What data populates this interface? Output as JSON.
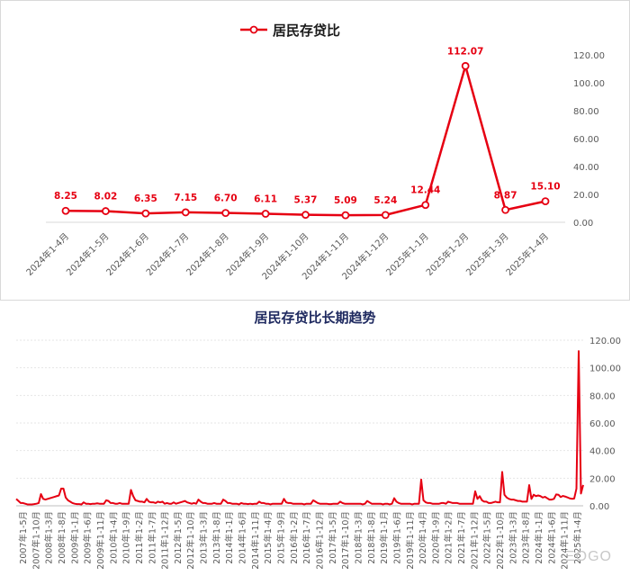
{
  "colors": {
    "series": "#e60012",
    "grid": "#d9d9d9",
    "title": "#1a1a1a",
    "bottom_title": "#1f2a60",
    "axis_text": "#595959"
  },
  "chart_data": [
    {
      "type": "line",
      "title": "",
      "legend": {
        "label": "居民存贷比",
        "position": "top"
      },
      "categories": [
        "2024年1-4月",
        "2024年1-5月",
        "2024年1-6月",
        "2024年1-7月",
        "2024年1-8月",
        "2024年1-9月",
        "2024年1-10月",
        "2024年1-11月",
        "2024年1-12月",
        "2025年1-1月",
        "2025年1-2月",
        "2025年1-3月",
        "2025年1-4月"
      ],
      "values": [
        8.25,
        8.02,
        6.35,
        7.15,
        6.7,
        6.11,
        5.37,
        5.09,
        5.24,
        12.44,
        112.07,
        8.87,
        15.1
      ],
      "data_labels": [
        "8.25",
        "8.02",
        "6.35",
        "7.15",
        "6.70",
        "6.11",
        "5.37",
        "5.09",
        "5.24",
        "12.44",
        "112.07",
        "8.87",
        "15.10"
      ],
      "ylim": [
        0,
        120
      ],
      "yticks": [
        "0.00",
        "20.00",
        "40.00",
        "60.00",
        "80.00",
        "100.00",
        "120.00"
      ],
      "y_axis_side": "right",
      "grid": false
    },
    {
      "type": "line",
      "title": "居民存贷比长期趋势",
      "ylim": [
        0,
        120
      ],
      "yticks": [
        "0.00",
        "20.00",
        "40.00",
        "60.00",
        "80.00",
        "100.00",
        "120.00"
      ],
      "y_axis_side": "right",
      "grid": true,
      "x_tick_labels": [
        "2007年1-5月",
        "2007年1-10月",
        "2008年1-3月",
        "2008年1-8月",
        "2009年1-1月",
        "2009年1-6月",
        "2009年1-11月",
        "2010年1-4月",
        "2010年1-9月",
        "2011年1-2月",
        "2011年1-7月",
        "2011年1-12月",
        "2012年1-5月",
        "2012年1-10月",
        "2013年1-3月",
        "2013年1-8月",
        "2014年1-1月",
        "2014年1-6月",
        "2014年1-11月",
        "2015年1-4月",
        "2015年1-9月",
        "2016年1-2月",
        "2016年1-7月",
        "2016年1-12月",
        "2017年1-5月",
        "2017年1-10月",
        "2018年1-3月",
        "2018年1-8月",
        "2019年1-1月",
        "2019年1-6月",
        "2019年1-11月",
        "2020年1-4月",
        "2020年1-9月",
        "2021年1-2月",
        "2021年1-7月",
        "2021年1-12月",
        "2022年1-5月",
        "2022年1-10月",
        "2023年1-3月",
        "2023年1-8月",
        "2024年1-1月",
        "2024年1-6月",
        "2024年1-11月",
        "2025年1-4月"
      ],
      "series_name": "居民存贷比",
      "values": [
        5.0,
        3.5,
        2.0,
        2.0,
        1.5,
        1.0,
        1.0,
        1.0,
        1.2,
        1.5,
        2.0,
        8.5,
        5.0,
        4.5,
        5.0,
        5.5,
        6.0,
        6.5,
        7.0,
        7.5,
        12.5,
        12.5,
        6.0,
        4.0,
        3.0,
        2.0,
        1.5,
        1.2,
        1.2,
        1.0,
        2.5,
        1.5,
        1.5,
        1.2,
        1.5,
        1.5,
        1.8,
        1.5,
        1.5,
        1.5,
        4.0,
        3.5,
        2.0,
        2.0,
        1.5,
        1.5,
        2.0,
        1.5,
        1.5,
        1.5,
        1.5,
        11.5,
        7.0,
        4.0,
        3.5,
        3.0,
        3.0,
        2.5,
        5.0,
        3.0,
        2.5,
        2.5,
        2.0,
        3.0,
        2.5,
        3.0,
        1.5,
        2.0,
        1.5,
        1.5,
        2.5,
        1.5,
        2.0,
        2.5,
        3.0,
        3.5,
        2.5,
        2.0,
        1.5,
        2.0,
        1.5,
        4.5,
        3.0,
        2.0,
        2.0,
        1.5,
        1.5,
        1.5,
        2.0,
        1.5,
        1.5,
        1.5,
        4.5,
        3.5,
        2.0,
        2.0,
        1.5,
        1.5,
        1.5,
        1.0,
        2.0,
        1.5,
        1.5,
        1.2,
        1.5,
        1.2,
        1.5,
        1.5,
        3.0,
        2.0,
        2.0,
        1.5,
        1.5,
        1.0,
        1.5,
        1.5,
        1.5,
        1.5,
        1.5,
        5.0,
        2.5,
        2.0,
        2.0,
        1.5,
        1.5,
        1.5,
        1.5,
        1.5,
        1.0,
        1.5,
        1.5,
        1.5,
        4.0,
        3.0,
        2.0,
        1.5,
        1.5,
        1.5,
        1.5,
        1.2,
        1.2,
        1.5,
        1.5,
        1.5,
        3.0,
        2.0,
        1.5,
        1.5,
        1.5,
        1.5,
        1.5,
        1.5,
        1.5,
        1.5,
        1.0,
        1.5,
        3.5,
        2.5,
        1.5,
        1.5,
        1.5,
        1.5,
        1.5,
        1.0,
        1.5,
        1.5,
        1.0,
        1.5,
        5.5,
        3.0,
        2.0,
        1.5,
        1.5,
        1.5,
        1.5,
        1.5,
        1.0,
        1.5,
        1.5,
        1.5,
        19.0,
        4.0,
        2.5,
        2.0,
        2.0,
        1.5,
        1.5,
        1.5,
        1.5,
        2.0,
        2.0,
        1.5,
        3.0,
        2.5,
        2.0,
        2.0,
        2.0,
        1.5,
        1.5,
        1.5,
        1.5,
        1.5,
        1.5,
        1.5,
        10.5,
        5.0,
        7.0,
        4.0,
        3.0,
        3.0,
        2.0,
        2.0,
        2.5,
        3.0,
        2.5,
        2.5,
        24.5,
        8.0,
        6.0,
        5.0,
        4.5,
        4.5,
        4.0,
        3.5,
        3.5,
        3.0,
        3.0,
        3.0,
        15.0,
        5.0,
        8.0,
        7.0,
        7.5,
        7.0,
        6.0,
        6.5,
        5.5,
        4.5,
        4.5,
        5.0,
        8.25,
        8.02,
        6.35,
        7.15,
        6.7,
        6.11,
        5.37,
        5.09,
        5.24,
        12.44,
        112.07,
        8.87,
        15.1
      ]
    }
  ],
  "watermark": "ΞOGO"
}
